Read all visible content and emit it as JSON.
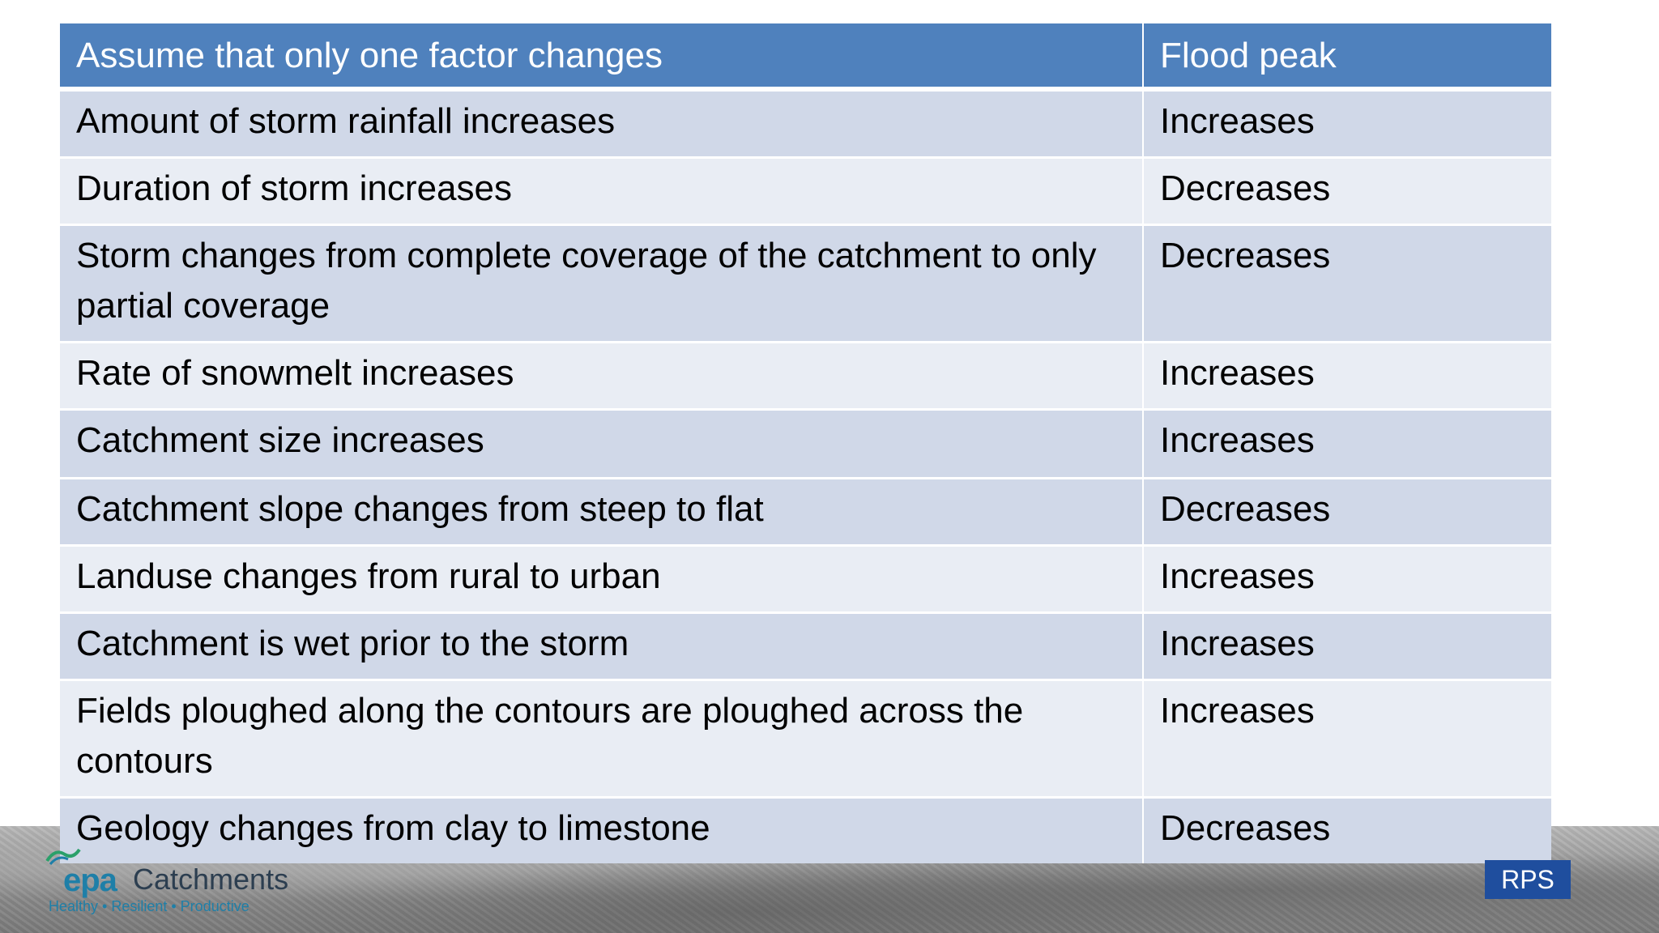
{
  "table": {
    "header": {
      "factor": "Assume that only one factor changes",
      "effect": "Flood peak"
    },
    "rows": [
      {
        "factor": "Amount of storm rainfall increases",
        "effect": "Increases"
      },
      {
        "factor": "Duration of storm increases",
        "effect": "Decreases"
      },
      {
        "factor": "Storm changes from complete coverage of the catchment to only partial coverage",
        "effect": "Decreases"
      },
      {
        "factor": "Rate of snowmelt increases",
        "effect": "Increases"
      },
      {
        "factor": "Catchment size increases",
        "effect": "Increases"
      },
      {
        "factor": "Catchment slope changes from steep to flat",
        "effect": "Decreases"
      },
      {
        "factor": "Landuse changes from rural to urban",
        "effect": "Increases"
      },
      {
        "factor": "Catchment is wet prior to the storm",
        "effect": "Increases"
      },
      {
        "factor": "Fields ploughed along the contours are ploughed across the contours",
        "effect": "Increases"
      },
      {
        "factor": "Geology changes from clay to limestone",
        "effect": "Decreases"
      }
    ]
  },
  "footer": {
    "epa_logo": {
      "epa": "epa",
      "catchments": "Catchments",
      "tagline": "Healthy • Resilient • Productive"
    },
    "rps_logo": "RPS"
  }
}
